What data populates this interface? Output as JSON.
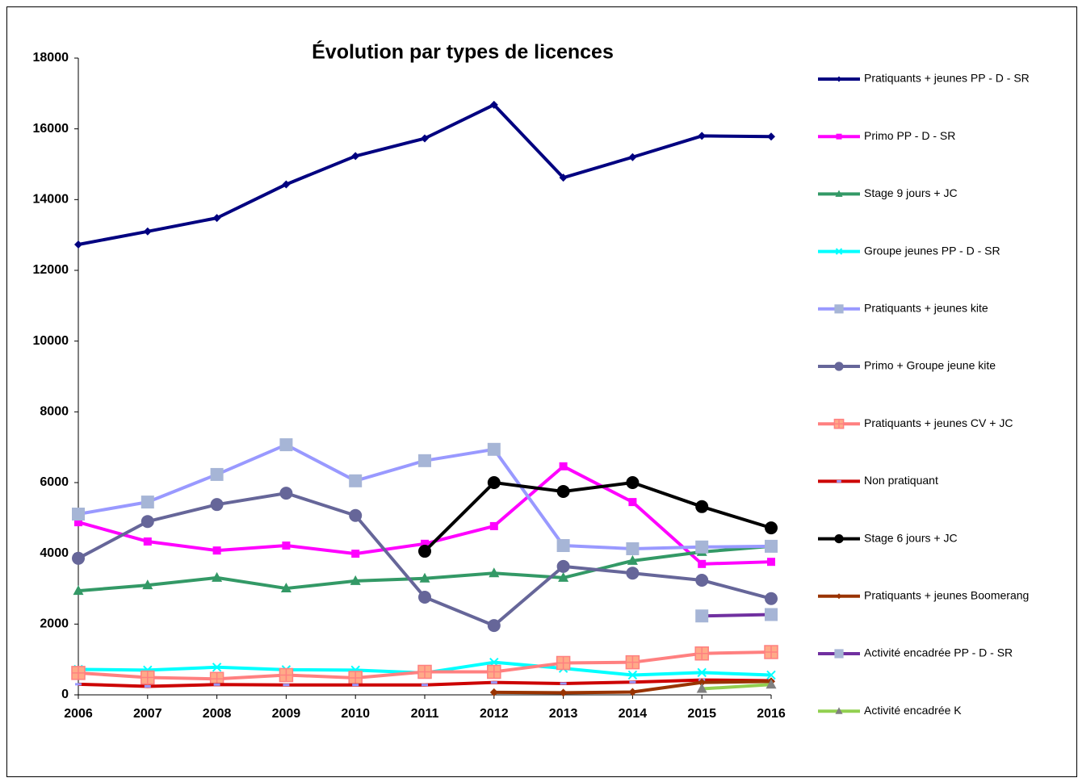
{
  "chart_data": {
    "type": "line",
    "title": "Évolution par types de licences",
    "x": [
      2006,
      2007,
      2008,
      2009,
      2010,
      2011,
      2012,
      2013,
      2014,
      2015,
      2016
    ],
    "xlim": [
      2006,
      2016
    ],
    "xticks": [
      2006,
      2007,
      2008,
      2009,
      2010,
      2011,
      2012,
      2013,
      2014,
      2015,
      2016
    ],
    "ylim": [
      0,
      18000
    ],
    "yticks": [
      0,
      2000,
      4000,
      6000,
      8000,
      10000,
      12000,
      14000,
      16000,
      18000
    ],
    "grid": false,
    "legend": "right",
    "series": [
      {
        "name": "Pratiquants + jeunes PP - D - SR",
        "color": "#000080",
        "marker": "diamond",
        "values": [
          12730,
          13100,
          13480,
          14430,
          15230,
          15730,
          16680,
          14620,
          15200,
          15800,
          15780
        ]
      },
      {
        "name": "Primo PP - D - SR",
        "color": "#ff00ff",
        "marker": "square",
        "values": [
          4880,
          4335,
          4080,
          4220,
          3990,
          4270,
          4770,
          6460,
          5450,
          3700,
          3760
        ]
      },
      {
        "name": "Stage 9 jours + JC",
        "color": "#339966",
        "marker": "triangle",
        "values": [
          2940,
          3100,
          3310,
          3010,
          3220,
          3290,
          3440,
          3310,
          3790,
          4040,
          4200
        ]
      },
      {
        "name": "Groupe jeunes PP - D - SR",
        "color": "#00ffff",
        "marker": "x",
        "values": [
          720,
          700,
          780,
          710,
          700,
          620,
          920,
          750,
          560,
          630,
          560
        ]
      },
      {
        "name": "Pratiquants + jeunes kite",
        "color": "#9999ff",
        "marker": "bigsquare",
        "marker_color": "#a6b5d6",
        "values": [
          5110,
          5450,
          6230,
          7070,
          6050,
          6620,
          6940,
          4220,
          4130,
          4180,
          4200
        ]
      },
      {
        "name": "Primo + Groupe jeune kite",
        "color": "#666699",
        "marker": "circle",
        "values": [
          3860,
          4900,
          5380,
          5700,
          5070,
          2760,
          1960,
          3630,
          3440,
          3240,
          2720
        ]
      },
      {
        "name": "Pratiquants + jeunes CV + JC",
        "color": "#ff8080",
        "marker": "plus",
        "marker_color": "#ffaa88",
        "values": [
          620,
          490,
          450,
          560,
          480,
          650,
          650,
          900,
          920,
          1170,
          1210
        ]
      },
      {
        "name": "Non pratiquant",
        "color": "#cc0000",
        "marker": "dash",
        "values": [
          300,
          240,
          290,
          280,
          280,
          280,
          350,
          320,
          360,
          420,
          400
        ]
      },
      {
        "name": "Stage 6 jours + JC",
        "color": "#000000",
        "marker": "circle",
        "values": [
          null,
          null,
          null,
          null,
          null,
          4060,
          6000,
          5750,
          6000,
          5320,
          4720
        ]
      },
      {
        "name": "Pratiquants + jeunes Boomerang",
        "color": "#993300",
        "marker": "diamond",
        "values": [
          null,
          null,
          null,
          null,
          null,
          null,
          70,
          60,
          80,
          350,
          380
        ]
      },
      {
        "name": "Activité encadrée PP - D - SR",
        "color": "#7030a0",
        "marker": "bigsquare",
        "marker_color": "#a6b5d6",
        "values": [
          null,
          null,
          null,
          null,
          null,
          null,
          null,
          null,
          null,
          2230,
          2270
        ]
      },
      {
        "name": "Activité encadrée K",
        "color": "#92d050",
        "marker": "triangle",
        "marker_color": "#808080",
        "values": [
          null,
          null,
          null,
          null,
          null,
          null,
          null,
          null,
          null,
          170,
          290
        ]
      }
    ]
  }
}
